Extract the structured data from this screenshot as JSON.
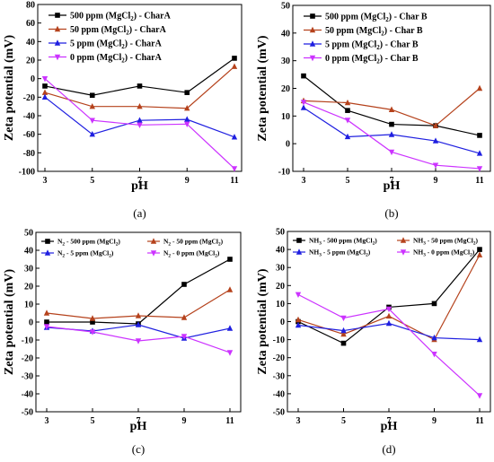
{
  "chart_data": [
    {
      "type": "line",
      "caption": "(a)",
      "xlabel": "pH",
      "ylabel": "Zeta potential (mV)",
      "x": [
        3,
        5,
        7,
        9,
        11
      ],
      "xlim": [
        3,
        11
      ],
      "ylim": [
        -100,
        80
      ],
      "yticks": [
        -100,
        -80,
        -60,
        -40,
        -20,
        0,
        20,
        40,
        60,
        80
      ],
      "grid": false,
      "legend": "top-left",
      "series": [
        {
          "name": "500 ppm (MgCl₂) - CharA",
          "color": "#000000",
          "marker": "square",
          "values": [
            -8,
            -18,
            -8,
            -15,
            22
          ]
        },
        {
          "name": "50 ppm (MgCl₂) - CharA",
          "color": "#b5421c",
          "marker": "triangle",
          "values": [
            -15,
            -30,
            -30,
            -32,
            13
          ]
        },
        {
          "name": "5 ppm (MgCl₂) - CharA",
          "color": "#1f1fe0",
          "marker": "triangle",
          "values": [
            -20,
            -60,
            -45,
            -44,
            -63
          ]
        },
        {
          "name": "0 ppm (MgCl₂) - CharA",
          "color": "#cc33ff",
          "marker": "triangle-down",
          "values": [
            0,
            -45,
            -50,
            -49,
            -97
          ]
        }
      ]
    },
    {
      "type": "line",
      "caption": "(b)",
      "xlabel": "pH",
      "ylabel": "Zeta potential (mV)",
      "x": [
        3,
        5,
        7,
        9,
        11
      ],
      "xlim": [
        3,
        11
      ],
      "ylim": [
        -10,
        50
      ],
      "yticks": [
        -10,
        0,
        10,
        20,
        30,
        40,
        50
      ],
      "grid": false,
      "legend": "top-left",
      "series": [
        {
          "name": "500 ppm (MgCl₂) - Char B",
          "color": "#000000",
          "marker": "square",
          "values": [
            24.5,
            12,
            7,
            6.5,
            3
          ]
        },
        {
          "name": "50 ppm (MgCl₂) - Char B",
          "color": "#b5421c",
          "marker": "triangle",
          "values": [
            15.5,
            14.8,
            12.3,
            6.5,
            20
          ]
        },
        {
          "name": "5 ppm (MgCl₂) - Char B",
          "color": "#1f1fe0",
          "marker": "triangle",
          "values": [
            13,
            2.5,
            3.3,
            1,
            -3.5
          ]
        },
        {
          "name": "0 ppm (MgCl₂) - Char B",
          "color": "#cc33ff",
          "marker": "triangle-down",
          "values": [
            15,
            8.5,
            -3,
            -7.8,
            -9
          ]
        }
      ]
    },
    {
      "type": "line",
      "caption": "(c)",
      "xlabel": "pH",
      "ylabel": "Zeta potential (mV)",
      "x": [
        3,
        5,
        7,
        9,
        11
      ],
      "xlim": [
        3,
        11
      ],
      "ylim": [
        -50,
        50
      ],
      "yticks": [
        -50,
        -40,
        -30,
        -20,
        -10,
        0,
        10,
        20,
        30,
        40,
        50
      ],
      "grid": false,
      "legend": "top",
      "series": [
        {
          "name": "N₂ - 500 ppm (MgCl₂)",
          "color": "#000000",
          "marker": "square",
          "values": [
            0,
            0,
            -1,
            21,
            35
          ]
        },
        {
          "name": "N₂ - 50 ppm (MgCl₂)",
          "color": "#b5421c",
          "marker": "triangle",
          "values": [
            5,
            2,
            3.5,
            2.5,
            18
          ]
        },
        {
          "name": "N₂ - 5 ppm (MgCl₂)",
          "color": "#1f1fe0",
          "marker": "triangle",
          "values": [
            -3,
            -5,
            -1.5,
            -9,
            -3.5
          ]
        },
        {
          "name": "N₂ - 0 ppm (MgCl₂)",
          "color": "#cc33ff",
          "marker": "triangle-down",
          "values": [
            -2.5,
            -5.5,
            -10.5,
            -8,
            -17
          ]
        }
      ]
    },
    {
      "type": "line",
      "caption": "(d)",
      "xlabel": "pH",
      "ylabel": "Zeta potential (mV)",
      "x": [
        3,
        5,
        7,
        9,
        11
      ],
      "xlim": [
        3,
        11
      ],
      "ylim": [
        -50,
        50
      ],
      "yticks": [
        -50,
        -40,
        -30,
        -20,
        -10,
        0,
        10,
        20,
        30,
        40,
        50
      ],
      "grid": false,
      "legend": "top",
      "series": [
        {
          "name": "NH₃ - 500 ppm (MgCl₂)",
          "color": "#000000",
          "marker": "square",
          "values": [
            0,
            -12,
            8,
            10,
            40
          ]
        },
        {
          "name": "NH₃ - 50 ppm (MgCl₂)",
          "color": "#b5421c",
          "marker": "triangle",
          "values": [
            1,
            -7,
            3,
            -10,
            37
          ]
        },
        {
          "name": "NH₃ - 5 ppm (MgCl₂)",
          "color": "#1f1fe0",
          "marker": "triangle",
          "values": [
            -2,
            -5,
            -1,
            -9,
            -10
          ]
        },
        {
          "name": "NH₃ - 0 ppm (MgCl₂)",
          "color": "#cc33ff",
          "marker": "triangle-down",
          "values": [
            15,
            2,
            7,
            -18,
            -41
          ]
        }
      ]
    }
  ]
}
